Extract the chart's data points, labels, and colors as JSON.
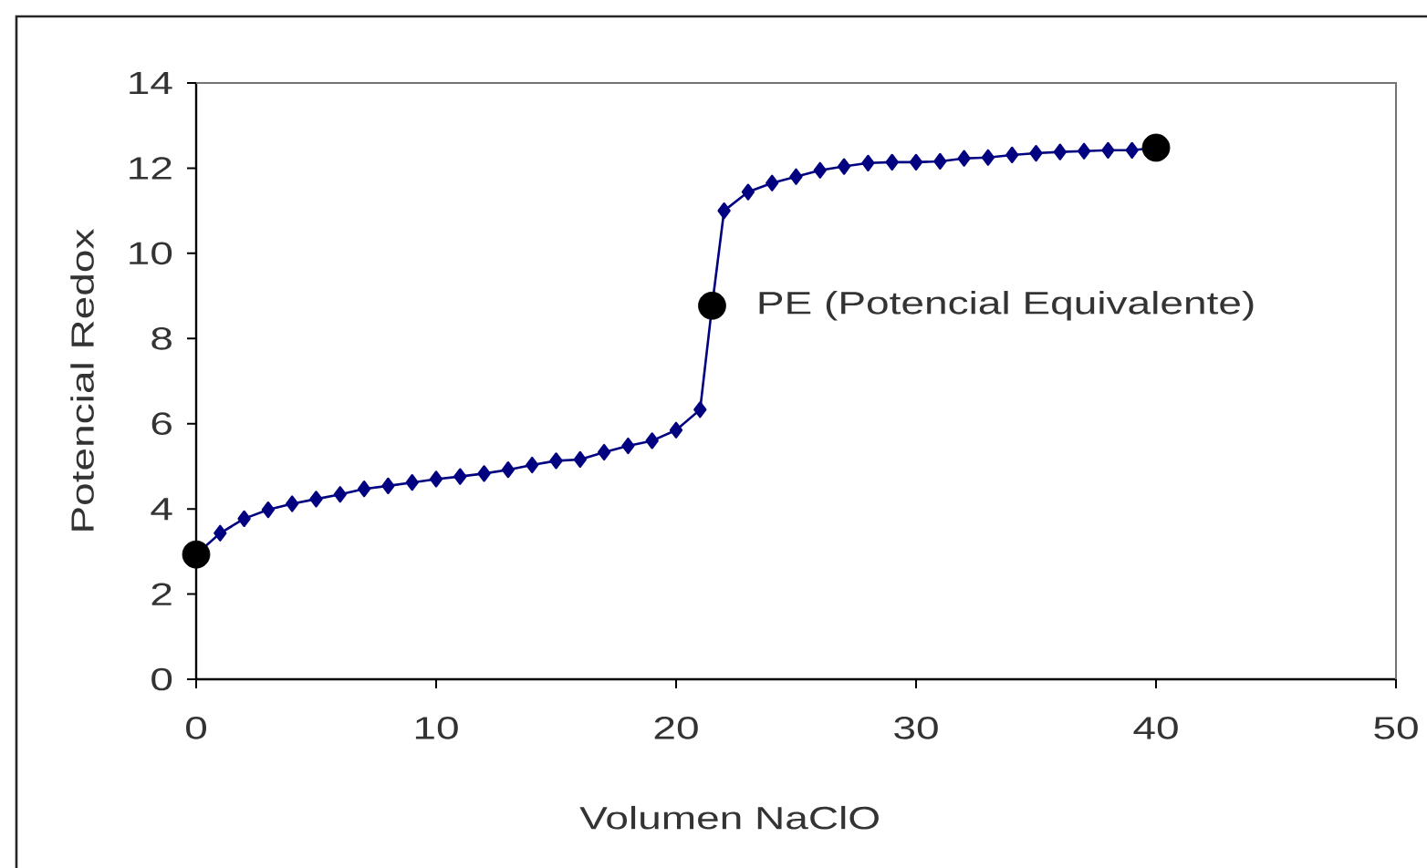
{
  "chart_data": {
    "type": "line",
    "xlabel": "Volumen NaClO",
    "ylabel": "Potencial Redox",
    "xlim": [
      0,
      50
    ],
    "ylim": [
      0,
      14
    ],
    "xticks": [
      0,
      10,
      20,
      30,
      40,
      50
    ],
    "yticks": [
      0,
      2,
      4,
      6,
      8,
      10,
      12,
      14
    ],
    "annotations": [
      {
        "text": "PE (Potencial Equivalente)",
        "x": 21.5,
        "y": 8.77
      }
    ],
    "series": [
      {
        "color": "#000080",
        "marker": "diamond",
        "x": [
          0,
          1,
          2,
          3,
          4,
          5,
          6,
          7,
          8,
          9,
          10,
          11,
          12,
          13,
          14,
          15,
          16,
          17,
          18,
          19,
          20,
          21,
          21.5,
          22,
          23,
          24,
          25,
          26,
          27,
          28,
          29,
          30,
          31,
          32,
          33,
          34,
          35,
          36,
          37,
          38,
          39,
          40
        ],
        "values": [
          2.93,
          3.43,
          3.77,
          3.98,
          4.12,
          4.23,
          4.34,
          4.47,
          4.54,
          4.62,
          4.7,
          4.76,
          4.83,
          4.92,
          5.03,
          5.13,
          5.16,
          5.33,
          5.48,
          5.6,
          5.85,
          6.33,
          8.77,
          11.0,
          11.44,
          11.65,
          11.8,
          11.95,
          12.04,
          12.12,
          12.14,
          12.14,
          12.16,
          12.23,
          12.25,
          12.31,
          12.35,
          12.38,
          12.4,
          12.42,
          12.42,
          12.48
        ]
      },
      {
        "type": "scatter",
        "color": "#000000",
        "marker": "circle",
        "x": [
          0,
          21.5,
          40
        ],
        "values": [
          2.93,
          8.77,
          12.48
        ]
      }
    ]
  }
}
